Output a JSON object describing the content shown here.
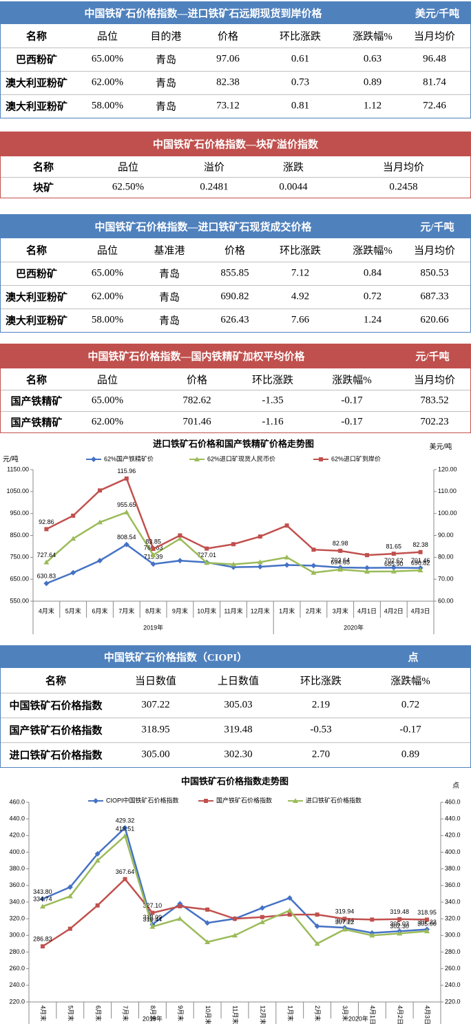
{
  "tables": [
    {
      "title": "中国铁矿石价格指数—进口铁矿石远期现货到岸价格",
      "unit": "美元/千吨",
      "header_color": "#4f81bd",
      "columns": [
        "名称",
        "品位",
        "目的港",
        "价格",
        "环比涨跌",
        "涨跌幅%",
        "当月均价"
      ],
      "rows": [
        [
          "巴西粉矿",
          "65.00%",
          "青岛",
          "97.06",
          "0.61",
          "0.63",
          "96.48"
        ],
        [
          "澳大利亚粉矿",
          "62.00%",
          "青岛",
          "82.38",
          "0.73",
          "0.89",
          "81.74"
        ],
        [
          "澳大利亚粉矿",
          "58.00%",
          "青岛",
          "73.12",
          "0.81",
          "1.12",
          "72.46"
        ]
      ]
    },
    {
      "title": "中国铁矿石价格指数—块矿溢价指数",
      "header_color": "#c0504d",
      "columns": [
        "名称",
        "品位",
        "溢价",
        "涨跌",
        "当月均价"
      ],
      "rows": [
        [
          "块矿",
          "62.50%",
          "0.2481",
          "0.0044",
          "0.2458"
        ]
      ]
    },
    {
      "title": "中国铁矿石价格指数—进口铁矿石现货成交价格",
      "unit": "元/千吨",
      "header_color": "#4f81bd",
      "columns": [
        "名称",
        "品位",
        "基准港",
        "价格",
        "环比涨跌",
        "涨跌幅%",
        "当月均价"
      ],
      "rows": [
        [
          "巴西粉矿",
          "65.00%",
          "青岛",
          "855.85",
          "7.12",
          "0.84",
          "850.53"
        ],
        [
          "澳大利亚粉矿",
          "62.00%",
          "青岛",
          "690.82",
          "4.92",
          "0.72",
          "687.33"
        ],
        [
          "澳大利亚粉矿",
          "58.00%",
          "青岛",
          "626.43",
          "7.66",
          "1.24",
          "620.66"
        ]
      ]
    },
    {
      "title": "中国铁矿石价格指数—国内铁精矿加权平均价格",
      "unit": "元/千吨",
      "header_color": "#c0504d",
      "columns": [
        "名称",
        "品位",
        "价格",
        "环比涨跌",
        "涨跌幅%",
        "当月均价"
      ],
      "rows": [
        [
          "国产铁精矿",
          "65.00%",
          "782.62",
          "-1.35",
          "-0.17",
          "783.52"
        ],
        [
          "国产铁精矿",
          "62.00%",
          "701.46",
          "-1.16",
          "-0.17",
          "702.23"
        ]
      ]
    },
    {
      "title": "中国铁矿石价格指数（CIOPI）",
      "unit": "点",
      "header_color": "#4f81bd",
      "columns": [
        "名称",
        "当日数值",
        "上日数值",
        "环比涨跌",
        "涨跌幅%"
      ],
      "rows": [
        [
          "中国铁矿石价格指数",
          "307.22",
          "305.03",
          "2.19",
          "0.72"
        ],
        [
          "国产铁矿石价格指数",
          "318.95",
          "319.48",
          "-0.53",
          "-0.17"
        ],
        [
          "进口铁矿石价格指数",
          "305.00",
          "302.30",
          "2.70",
          "0.89"
        ]
      ]
    }
  ],
  "chart_data": [
    {
      "type": "line",
      "title": "进口铁矿石价格和国产铁精矿价格走势图",
      "y_label": "元/吨",
      "y2_label": "美元/吨",
      "categories": [
        "4月末",
        "5月末",
        "6月末",
        "7月末",
        "8月末",
        "9月末",
        "10月末",
        "11月末",
        "12月末",
        "1月末",
        "2月末",
        "3月末",
        "4月1日",
        "4月2日",
        "4月3日"
      ],
      "x_groups": [
        "2019年",
        "2020年"
      ],
      "ylim": [
        550,
        1150
      ],
      "yticks": [
        {
          "value": 550,
          "label": "550.00"
        },
        {
          "value": 650,
          "label": "650.00"
        },
        {
          "value": 750,
          "label": "750.00"
        },
        {
          "value": 850,
          "label": "850.00"
        },
        {
          "value": 950,
          "label": "950.00"
        },
        {
          "value": 1050,
          "label": "1050.00"
        },
        {
          "value": 1150,
          "label": "1150.00"
        }
      ],
      "y2lim": [
        60,
        120
      ],
      "y2ticks": [
        {
          "value": 60,
          "label": "60.00"
        },
        {
          "value": 70,
          "label": "70.00"
        },
        {
          "value": 80,
          "label": "80.00"
        },
        {
          "value": 90,
          "label": "90.00"
        },
        {
          "value": 100,
          "label": "100.00"
        },
        {
          "value": 110,
          "label": "110.00"
        },
        {
          "value": 120,
          "label": "120.00"
        }
      ],
      "series": [
        {
          "name": "62%国产铁精矿价",
          "color": "#4472c4",
          "marker": "diamond",
          "values": [
            630.83,
            680,
            735,
            808.54,
            719.39,
            735,
            727.01,
            705,
            707,
            715,
            712,
            703.64,
            702,
            702.62,
            701.46
          ],
          "value_labels": [
            "630.83",
            null,
            null,
            "808.54",
            "719.39",
            null,
            "727.01",
            null,
            null,
            null,
            null,
            "703.64",
            null,
            "702.62",
            "701.46"
          ]
        },
        {
          "name": "62%进口矿现货人民币价",
          "color": "#9bbb59",
          "marker": "triangle",
          "values": [
            727.64,
            835,
            910,
            955.65,
            760.63,
            835,
            725,
            718,
            728,
            750,
            680,
            694.65,
            685,
            685.9,
            690.82
          ],
          "value_labels": [
            "727.64",
            null,
            null,
            "955.65",
            "760.63",
            null,
            null,
            null,
            null,
            null,
            null,
            "694.65",
            null,
            "685.90",
            "690.82"
          ]
        },
        {
          "name": "62%进口矿到岸价",
          "color": "#c0504d",
          "marker": "square",
          "axis": "y2",
          "values": [
            92.86,
            99,
            110.5,
            115.96,
            83.85,
            90,
            84,
            86,
            89.5,
            94.5,
            83.5,
            82.98,
            81,
            81.65,
            82.38
          ],
          "value_labels": [
            "92.86",
            null,
            null,
            "115.96",
            "83.85",
            null,
            null,
            null,
            null,
            null,
            null,
            "82.98",
            null,
            "81.65",
            "82.38"
          ]
        }
      ]
    },
    {
      "type": "line",
      "title": "中国铁矿石价格指数走势图",
      "y2_label": "点",
      "categories": [
        "4月末",
        "5月末",
        "6月末",
        "7月末",
        "8月末",
        "9月末",
        "10月末",
        "11月末",
        "12月末",
        "1月末",
        "2月末",
        "3月末",
        "4月1日",
        "4月2日",
        "4月3日"
      ],
      "x_groups": [
        "2019年",
        "2020年"
      ],
      "ylim": [
        220,
        460
      ],
      "yticks": [
        {
          "value": 220,
          "label": "220.0"
        },
        {
          "value": 240,
          "label": "240.0"
        },
        {
          "value": 260,
          "label": "260.0"
        },
        {
          "value": 280,
          "label": "280.0"
        },
        {
          "value": 300,
          "label": "300.0"
        },
        {
          "value": 320,
          "label": "320.0"
        },
        {
          "value": 340,
          "label": "340.0"
        },
        {
          "value": 360,
          "label": "360.0"
        },
        {
          "value": 380,
          "label": "380.0"
        },
        {
          "value": 400,
          "label": "400.0"
        },
        {
          "value": 420,
          "label": "420.0"
        },
        {
          "value": 440,
          "label": "440.0"
        },
        {
          "value": 460,
          "label": "460.0"
        }
      ],
      "y2lim": [
        220,
        460
      ],
      "y2ticks": [
        {
          "value": 220,
          "label": "220.0"
        },
        {
          "value": 240,
          "label": "240.0"
        },
        {
          "value": 260,
          "label": "260.0"
        },
        {
          "value": 280,
          "label": "280.0"
        },
        {
          "value": 300,
          "label": "300.0"
        },
        {
          "value": 320,
          "label": "320.0"
        },
        {
          "value": 340,
          "label": "340.0"
        },
        {
          "value": 360,
          "label": "360.0"
        },
        {
          "value": 380,
          "label": "380.0"
        },
        {
          "value": 400,
          "label": "400.0"
        },
        {
          "value": 420,
          "label": "420.0"
        },
        {
          "value": 440,
          "label": "440.0"
        },
        {
          "value": 460,
          "label": "460.0"
        }
      ],
      "series": [
        {
          "name": "CIOPI中国铁矿石价格指数",
          "color": "#4472c4",
          "marker": "diamond",
          "values": [
            343.8,
            358,
            398,
            429.32,
            313.09,
            338,
            315,
            320,
            333,
            345,
            311,
            309.24,
            303,
            305.03,
            307.22
          ],
          "value_labels": [
            "343.80",
            null,
            null,
            "429.32",
            "313.09",
            null,
            null,
            null,
            null,
            null,
            null,
            "309.24",
            null,
            "305.03",
            "307.22"
          ]
        },
        {
          "name": "国产铁矿石价格指数",
          "color": "#c0504d",
          "marker": "square",
          "values": [
            286.83,
            308,
            336,
            367.64,
            327.1,
            335,
            331,
            320,
            322,
            325,
            325,
            319.94,
            319,
            319.48,
            318.95
          ],
          "value_labels": [
            "286.83",
            null,
            null,
            "367.64",
            "327.10",
            null,
            null,
            null,
            null,
            null,
            null,
            "319.94",
            null,
            "319.48",
            "318.95"
          ]
        },
        {
          "name": "进口铁矿石价格指数",
          "color": "#9bbb59",
          "marker": "triangle",
          "values": [
            334.74,
            347,
            390,
            419.51,
            310.44,
            320,
            292,
            300,
            316,
            330,
            290,
            307.22,
            300,
            302.3,
            305
          ],
          "value_labels": [
            "334.74",
            null,
            null,
            "419.51",
            "310.44",
            null,
            null,
            null,
            null,
            null,
            null,
            "307.22",
            null,
            "302.30",
            "305.00"
          ]
        }
      ]
    }
  ]
}
